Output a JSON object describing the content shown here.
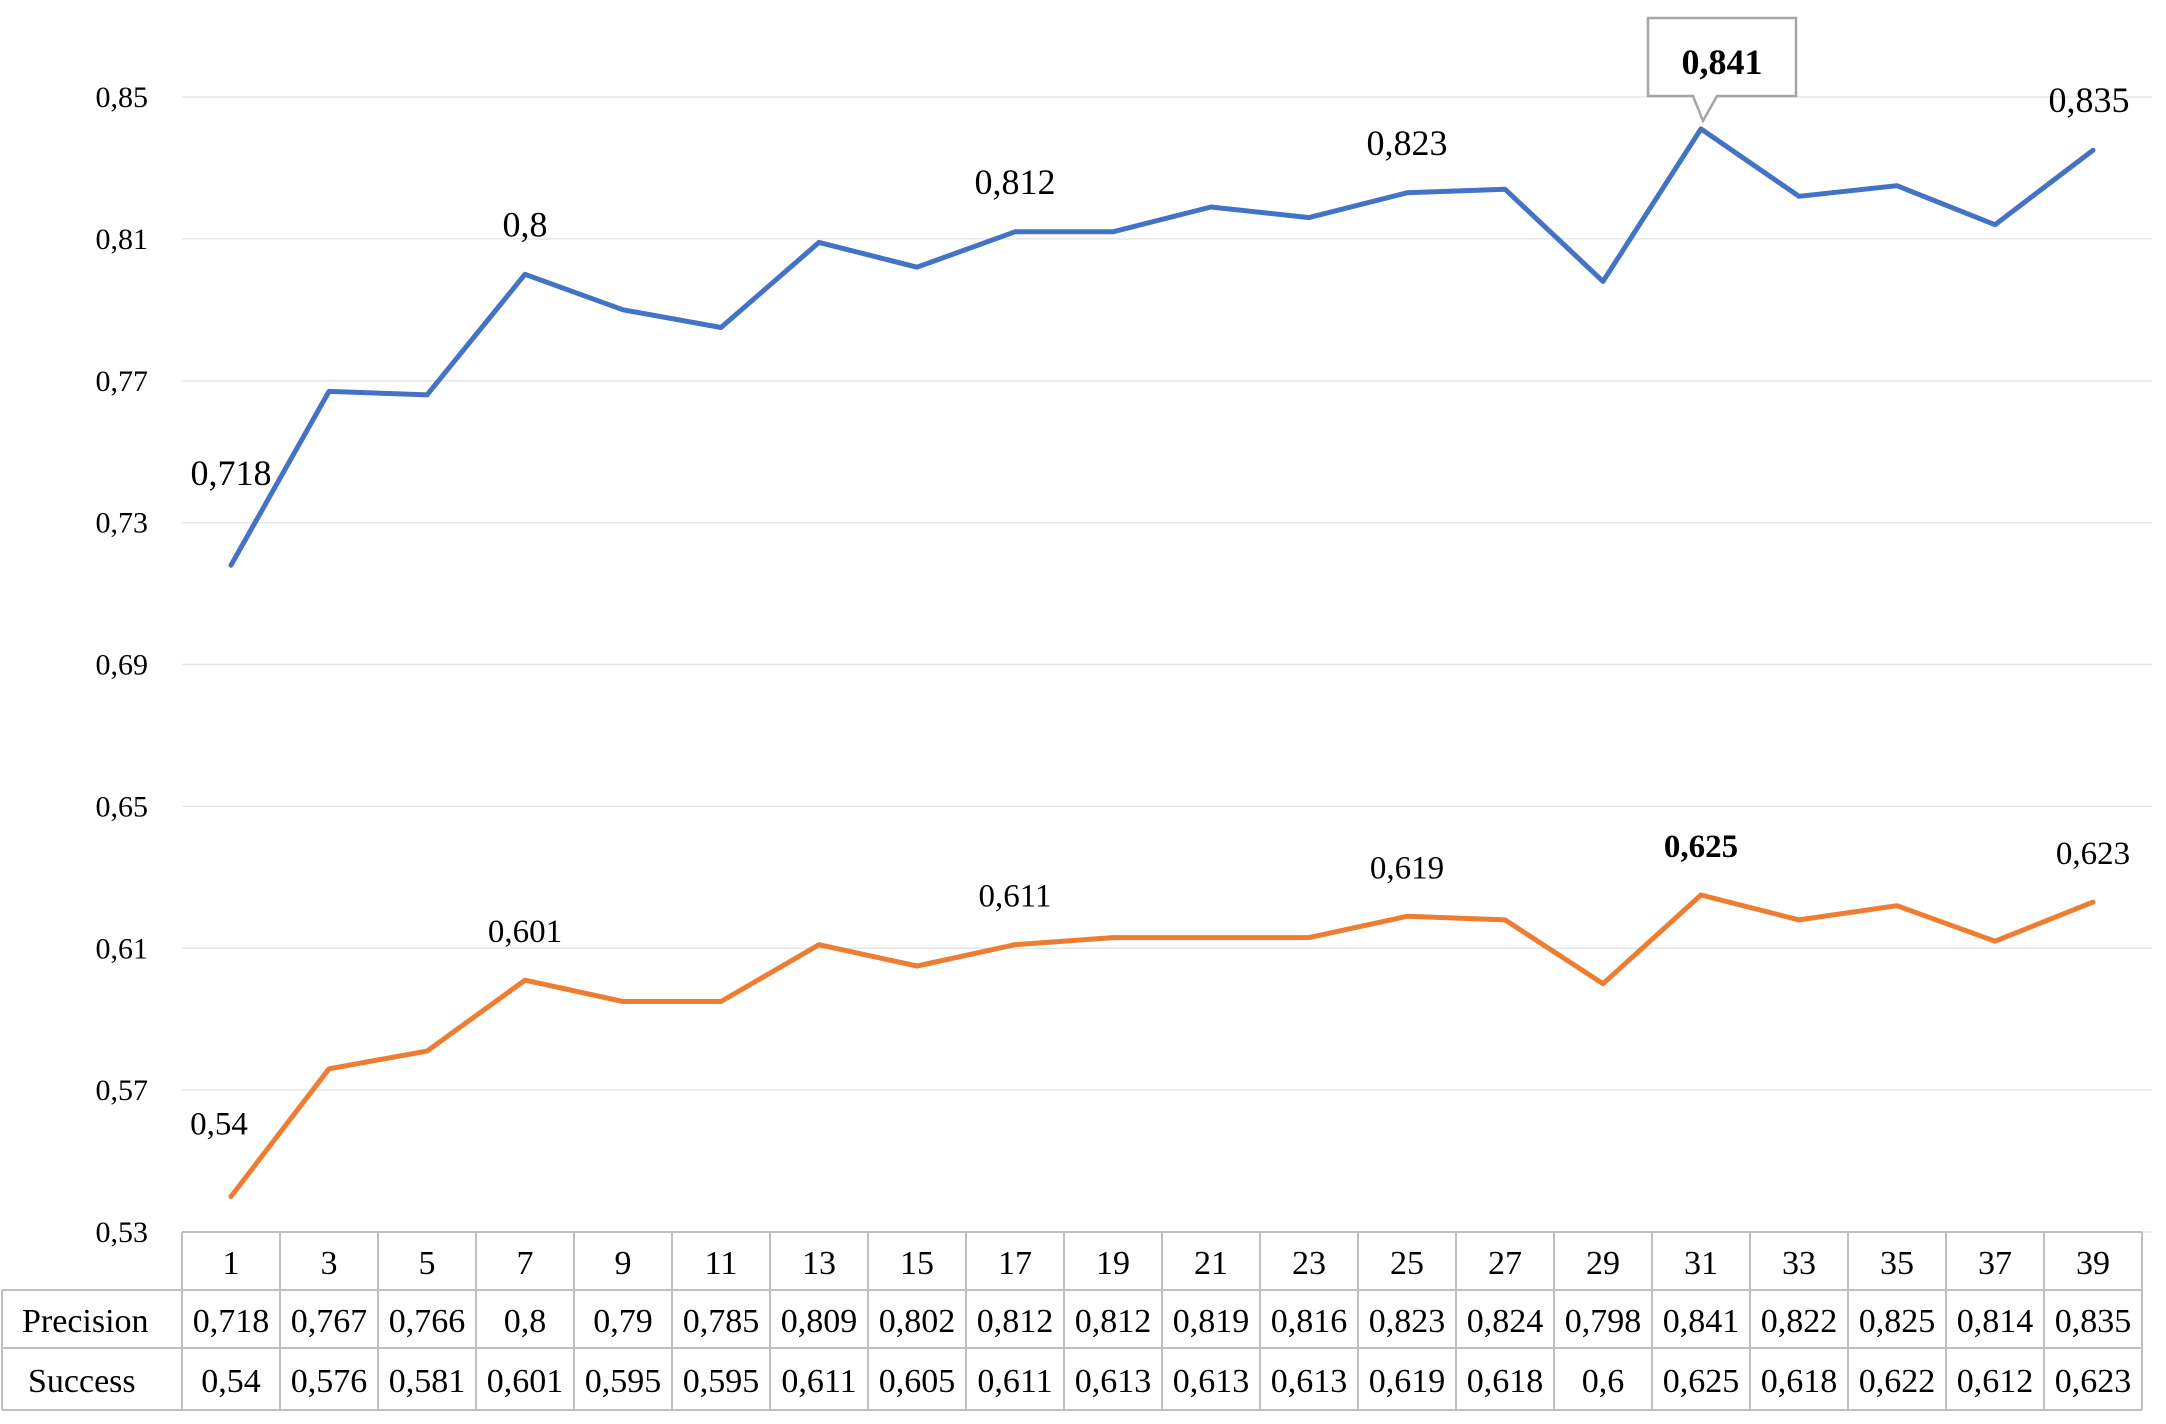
{
  "chart_data": {
    "type": "line",
    "categories": [
      "1",
      "3",
      "5",
      "7",
      "9",
      "11",
      "13",
      "15",
      "17",
      "19",
      "21",
      "23",
      "25",
      "27",
      "29",
      "31",
      "33",
      "35",
      "37",
      "39"
    ],
    "yticks": [
      "0,53",
      "0,57",
      "0,61",
      "0,65",
      "0,69",
      "0,73",
      "0,77",
      "0,81",
      "0,85"
    ],
    "ylim": [
      0.53,
      0.86
    ],
    "grid": true,
    "series": [
      {
        "name": "Precision",
        "color": "#4472C4",
        "values": [
          0.718,
          0.767,
          0.766,
          0.8,
          0.79,
          0.785,
          0.809,
          0.802,
          0.812,
          0.812,
          0.819,
          0.816,
          0.823,
          0.824,
          0.798,
          0.841,
          0.822,
          0.825,
          0.814,
          0.835
        ],
        "table_values": [
          "0,718",
          "0,767",
          "0,766",
          "0,8",
          "0,79",
          "0,785",
          "0,809",
          "0,802",
          "0,812",
          "0,812",
          "0,819",
          "0,816",
          "0,823",
          "0,824",
          "0,798",
          "0,841",
          "0,822",
          "0,825",
          "0,814",
          "0,835"
        ],
        "annotations": [
          {
            "index": 0,
            "text": "0,718"
          },
          {
            "index": 3,
            "text": "0,8"
          },
          {
            "index": 8,
            "text": "0,812"
          },
          {
            "index": 12,
            "text": "0,823"
          },
          {
            "index": 15,
            "text": "0,841",
            "highlight": true
          },
          {
            "index": 19,
            "text": "0,835"
          }
        ]
      },
      {
        "name": "Success",
        "color": "#ED7D31",
        "values": [
          0.54,
          0.576,
          0.581,
          0.601,
          0.595,
          0.595,
          0.611,
          0.605,
          0.611,
          0.613,
          0.613,
          0.613,
          0.619,
          0.618,
          0.6,
          0.625,
          0.618,
          0.622,
          0.612,
          0.623
        ],
        "table_values": [
          "0,54",
          "0,576",
          "0,581",
          "0,601",
          "0,595",
          "0,595",
          "0,611",
          "0,605",
          "0,611",
          "0,613",
          "0,613",
          "0,613",
          "0,619",
          "0,618",
          "0,6",
          "0,625",
          "0,618",
          "0,622",
          "0,612",
          "0,623"
        ],
        "annotations": [
          {
            "index": 0,
            "text": "0,54"
          },
          {
            "index": 3,
            "text": "0,601"
          },
          {
            "index": 8,
            "text": "0,611"
          },
          {
            "index": 12,
            "text": "0,619"
          },
          {
            "index": 15,
            "text": "0,625",
            "bold": true
          },
          {
            "index": 19,
            "text": "0,623"
          }
        ]
      }
    ]
  }
}
